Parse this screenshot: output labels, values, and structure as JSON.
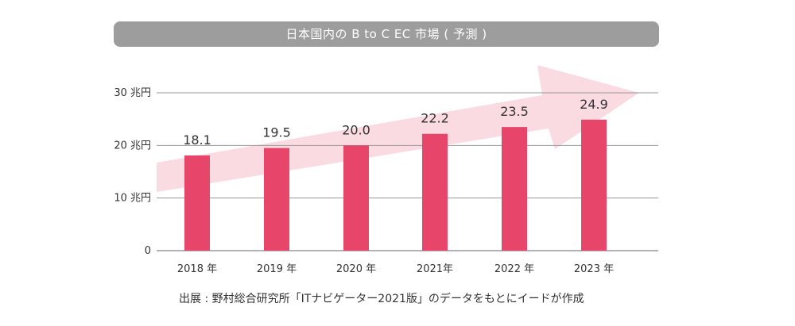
{
  "chart_data": {
    "type": "bar",
    "title": "日本国内の B to C EC 市場 ( 予測 )",
    "categories": [
      "2018 年",
      "2019 年",
      "2020 年",
      "2021年",
      "2022 年",
      "2023 年"
    ],
    "values": [
      18.1,
      19.5,
      20.0,
      22.2,
      23.5,
      24.9
    ],
    "value_labels": [
      "18.1",
      "19.5",
      "20.0",
      "22.2",
      "23.5",
      "24.9"
    ],
    "y_ticks": [
      {
        "value": 0,
        "label": "0"
      },
      {
        "value": 10,
        "label": "10 兆円"
      },
      {
        "value": 20,
        "label": "20 兆円"
      },
      {
        "value": 30,
        "label": "30 兆円"
      }
    ],
    "ylim": [
      0,
      30
    ],
    "grid": true,
    "bar_color": "#e8456a",
    "arrow_color": "#fadbe1",
    "grid_color": "#9a9a9a"
  },
  "source_text": "出展 : 野村総合研究所「ITナビゲーター2021版」のデータをもとにイードが作成"
}
